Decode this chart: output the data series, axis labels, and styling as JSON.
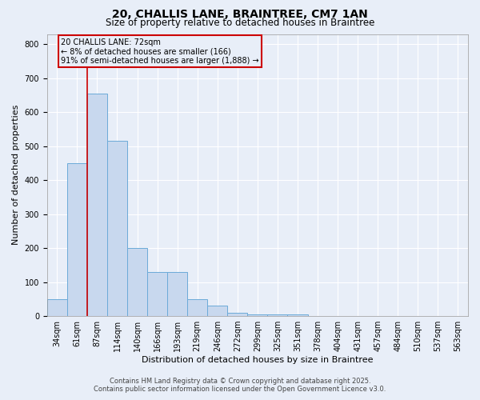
{
  "title1": "20, CHALLIS LANE, BRAINTREE, CM7 1AN",
  "title2": "Size of property relative to detached houses in Braintree",
  "xlabel": "Distribution of detached houses by size in Braintree",
  "ylabel": "Number of detached properties",
  "footer1": "Contains HM Land Registry data © Crown copyright and database right 2025.",
  "footer2": "Contains public sector information licensed under the Open Government Licence v3.0.",
  "annotation_line1": "20 CHALLIS LANE: 72sqm",
  "annotation_line2": "← 8% of detached houses are smaller (166)",
  "annotation_line3": "91% of semi-detached houses are larger (1,888) →",
  "bin_labels": [
    "34sqm",
    "61sqm",
    "87sqm",
    "114sqm",
    "140sqm",
    "166sqm",
    "193sqm",
    "219sqm",
    "246sqm",
    "272sqm",
    "299sqm",
    "325sqm",
    "351sqm",
    "378sqm",
    "404sqm",
    "431sqm",
    "457sqm",
    "484sqm",
    "510sqm",
    "537sqm",
    "563sqm"
  ],
  "bar_values": [
    50,
    450,
    655,
    515,
    200,
    130,
    130,
    50,
    30,
    10,
    5,
    5,
    5,
    0,
    0,
    0,
    0,
    0,
    0,
    0,
    0
  ],
  "bar_color": "#c8d8ee",
  "bar_edge_color": "#6baad8",
  "red_line_x": 1.5,
  "red_line_color": "#cc0000",
  "annotation_box_color": "#cc0000",
  "ylim": [
    0,
    830
  ],
  "yticks": [
    0,
    100,
    200,
    300,
    400,
    500,
    600,
    700,
    800
  ],
  "background_color": "#e8eef8",
  "grid_color": "#ffffff",
  "title1_fontsize": 10,
  "title2_fontsize": 8.5,
  "axis_label_fontsize": 8,
  "tick_fontsize": 7,
  "annotation_fontsize": 7,
  "footer_fontsize": 6
}
